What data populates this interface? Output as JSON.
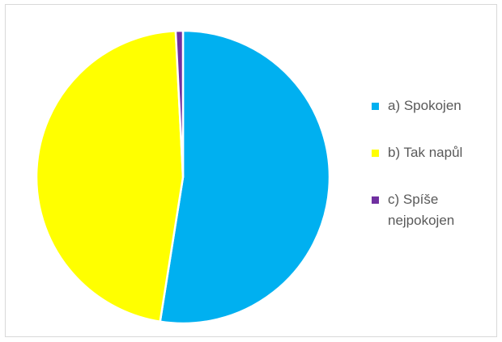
{
  "chart_data": {
    "type": "pie",
    "categories": [
      "a) Spokojen",
      "b) Tak napůl",
      "c) Spíše\nnejpokojen"
    ],
    "values": [
      52.5,
      46.7,
      0.8
    ],
    "colors": [
      "#00b0f0",
      "#ffff00",
      "#7030a0"
    ],
    "start_angle_deg": 0,
    "direction": "clockwise",
    "legend_position": "right",
    "title": ""
  }
}
